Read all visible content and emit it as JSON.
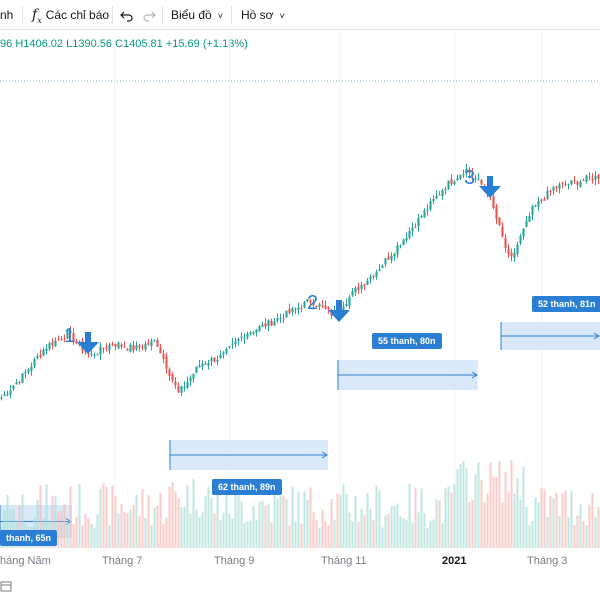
{
  "toolbar": {
    "partial_label": "nh",
    "indicators_label": "Các chỉ báo",
    "indicators_icon": "fx-icon",
    "undo_icon": "undo-icon",
    "redo_icon": "redo-icon",
    "chart_label": "Biểu đồ",
    "profile_label": "Hồ sơ"
  },
  "ohlc": {
    "prefix": "96",
    "high": "H1406.02",
    "low": "L1390.56",
    "close": "C1405.81",
    "change": "+15.69 (+1.13%)"
  },
  "axis": {
    "ticks": [
      "háng Năm",
      "Tháng 7",
      "Tháng 9",
      "Tháng 11",
      "2021",
      "Tháng 3"
    ]
  },
  "markers": [
    "1",
    "2",
    "3"
  ],
  "range_labels": [
    "thanh, 65n",
    "62 thanh, 89n",
    "55 thanh, 80n",
    "52 thanh, 81n"
  ],
  "colors": {
    "up": "#26a69a",
    "down": "#ef5350",
    "accent": "#2a7fd4",
    "range_fill": "#cfe3f8"
  },
  "chart_data": {
    "type": "candlestick",
    "title": "",
    "xlabel": "",
    "ylabel": "",
    "last": {
      "high": 1406.02,
      "low": 1390.56,
      "close": 1405.81,
      "change": 15.69,
      "change_pct": 1.13
    },
    "close_path": [
      {
        "t": "Apr-20",
        "v": 28
      },
      {
        "t": "May-01",
        "v": 40
      },
      {
        "t": "May-15",
        "v": 55
      },
      {
        "t": "Jun-01",
        "v": 62
      },
      {
        "t": "Jun-10",
        "v": 50
      },
      {
        "t": "Jun-20",
        "v": 57
      },
      {
        "t": "Jul-01",
        "v": 54
      },
      {
        "t": "Jul-15",
        "v": 58
      },
      {
        "t": "Jul-25",
        "v": 30
      },
      {
        "t": "Aug-10",
        "v": 46
      },
      {
        "t": "Aug-25",
        "v": 50
      },
      {
        "t": "Sep-10",
        "v": 62
      },
      {
        "t": "Sep-25",
        "v": 67
      },
      {
        "t": "Oct-15",
        "v": 73
      },
      {
        "t": "Oct-28",
        "v": 80
      },
      {
        "t": "Nov-05",
        "v": 72
      },
      {
        "t": "Nov-20",
        "v": 85
      },
      {
        "t": "Dec-05",
        "v": 96
      },
      {
        "t": "Dec-20",
        "v": 110
      },
      {
        "t": "Jan-05",
        "v": 125
      },
      {
        "t": "Jan-15",
        "v": 140
      },
      {
        "t": "Jan-25",
        "v": 150
      },
      {
        "t": "Feb-01",
        "v": 138
      },
      {
        "t": "Feb-10",
        "v": 100
      },
      {
        "t": "Feb-20",
        "v": 128
      },
      {
        "t": "Mar-01",
        "v": 140
      },
      {
        "t": "Mar-15",
        "v": 143
      },
      {
        "t": "Mar-31",
        "v": 146
      }
    ]
  }
}
